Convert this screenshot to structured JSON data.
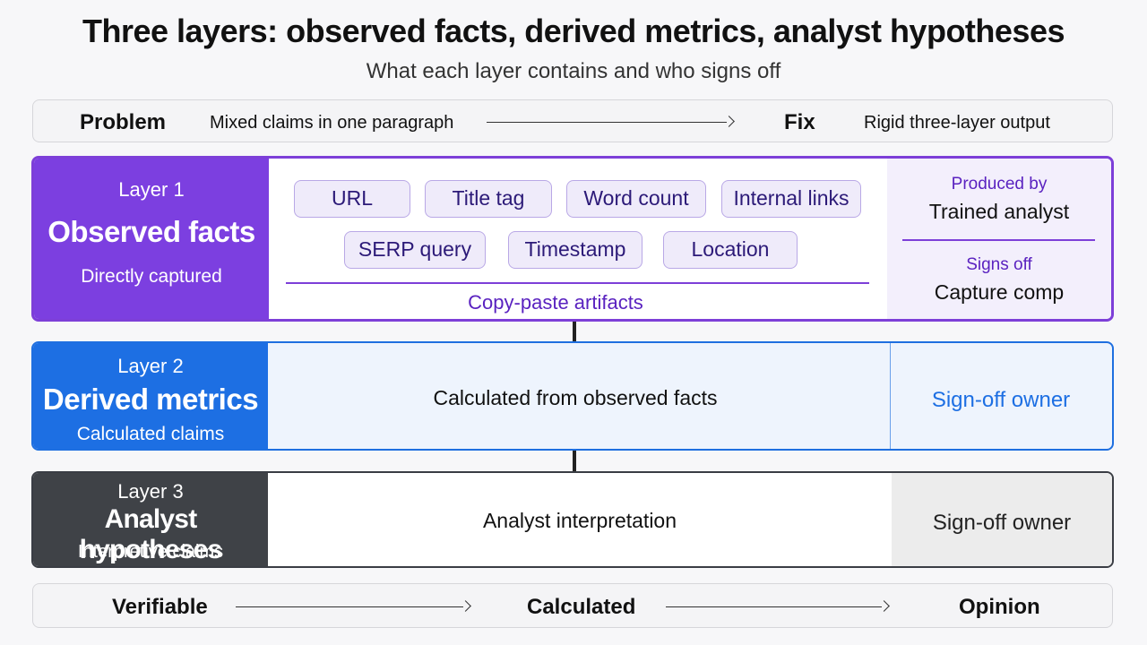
{
  "title": "Three layers: observed facts, derived metrics, analyst hypotheses",
  "subtitle": "What each layer contains and who signs off",
  "problem_bar": {
    "problem_label": "Problem",
    "problem_text": "Mixed claims in one paragraph",
    "fix_label": "Fix",
    "fix_text": "Rigid three-layer output"
  },
  "layer1": {
    "number": "Layer 1",
    "name": "Observed facts",
    "desc": "Directly captured",
    "chips": [
      "URL",
      "Title tag",
      "Word count",
      "Internal links",
      "SERP query",
      "Timestamp",
      "Location"
    ],
    "chips_caption": "Copy-paste artifacts",
    "produced_label": "Produced by",
    "produced_value": "Trained analyst",
    "signs_label": "Signs off",
    "signs_value": "Capture comp"
  },
  "layer2": {
    "number": "Layer 2",
    "name": "Derived metrics",
    "desc": "Calculated claims",
    "content": "Calculated from observed facts",
    "signoff": "Sign-off owner"
  },
  "layer3": {
    "number": "Layer 3",
    "name": "Analyst hypotheses",
    "desc": "Interpretive claims",
    "content": "Analyst interpretation",
    "signoff": "Sign-off owner"
  },
  "scale_bar": {
    "left": "Verifiable",
    "middle": "Calculated",
    "right": "Opinion"
  },
  "colors": {
    "layer1": "#7c3fe0",
    "layer2": "#1d6fe3",
    "layer3": "#3f4247"
  }
}
